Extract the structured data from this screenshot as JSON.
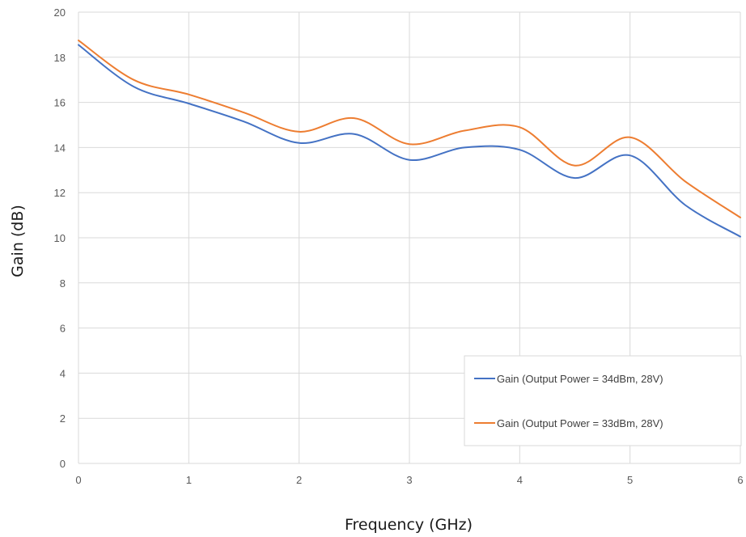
{
  "chart_data": {
    "type": "line",
    "title": "",
    "xlabel": "Frequency (GHz)",
    "ylabel": "Gain (dB)",
    "xlim": [
      0,
      6
    ],
    "ylim": [
      0,
      20
    ],
    "xticks": [
      0,
      1,
      2,
      3,
      4,
      5,
      6
    ],
    "yticks": [
      0,
      2,
      4,
      6,
      8,
      10,
      12,
      14,
      16,
      18,
      20
    ],
    "grid": true,
    "legend_position": "bottom-right",
    "series": [
      {
        "name": "Gain (Output Power = 34dBm, 28V)",
        "color": "#4472c4",
        "x": [
          0,
          0.5,
          1,
          1.5,
          2,
          2.5,
          3,
          3.5,
          4,
          4.5,
          5,
          5.5,
          6
        ],
        "y": [
          18.55,
          16.7,
          15.95,
          15.15,
          14.2,
          14.6,
          13.45,
          14.0,
          13.9,
          12.65,
          13.65,
          11.45,
          10.05
        ]
      },
      {
        "name": "Gain (Output Power = 33dBm, 28V)",
        "color": "#ed7d31",
        "x": [
          0,
          0.5,
          1,
          1.5,
          2,
          2.5,
          3,
          3.5,
          4,
          4.5,
          5,
          5.5,
          6
        ],
        "y": [
          18.75,
          17.0,
          16.35,
          15.55,
          14.7,
          15.3,
          14.15,
          14.75,
          14.9,
          13.2,
          14.45,
          12.5,
          10.9
        ]
      }
    ]
  }
}
